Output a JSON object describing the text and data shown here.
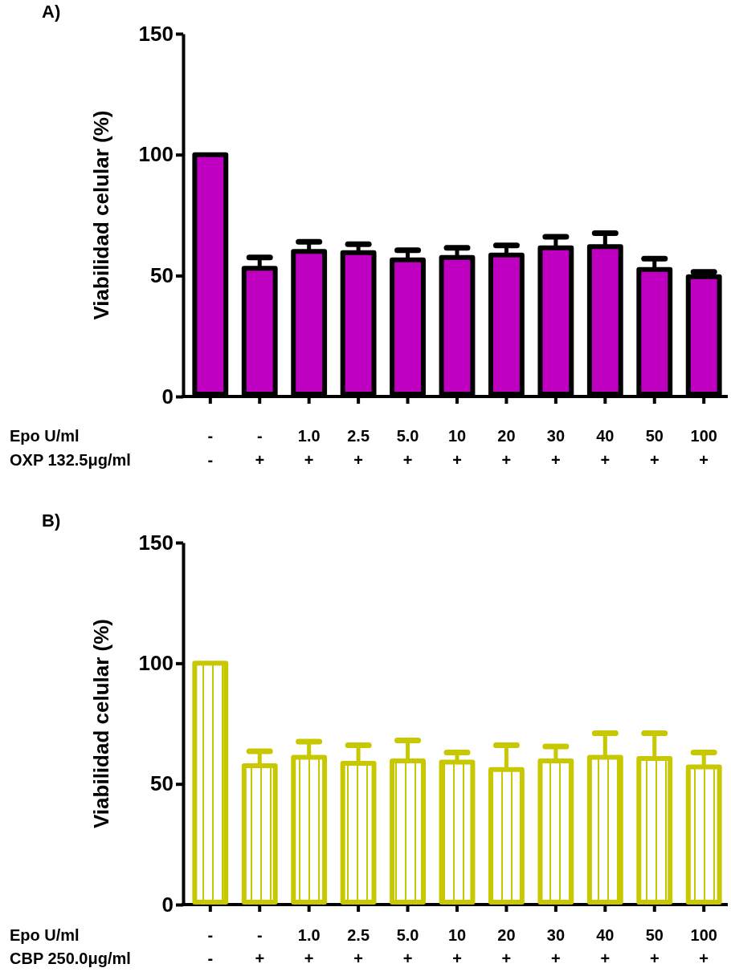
{
  "chart_data": [
    {
      "type": "bar",
      "title": "A)",
      "ylabel": "Viabilidad celular  (%)",
      "xlabel": "Epo U/ml\nOXP 132.5μg/ml",
      "categories": [
        "-\n-",
        "-\n+",
        "1.0\n+",
        "2.5\n+",
        "5.0\n+",
        "10\n+",
        "20\n+",
        "30\n+",
        "40\n+",
        "50\n+",
        "100\n+"
      ],
      "series": [
        {
          "color": "#c000c0",
          "values": [
            100,
            53,
            60,
            59.5,
            56.5,
            57.5,
            58.5,
            61.5,
            62,
            52.5,
            49.5
          ],
          "errors": [
            null,
            4.5,
            4,
            3.5,
            4,
            4,
            4,
            4.5,
            5.5,
            4.5,
            2
          ]
        }
      ],
      "ylim": [
        0,
        150
      ],
      "yticks": [
        0,
        50,
        100,
        150
      ]
    },
    {
      "type": "bar",
      "title": "B)",
      "ylabel": "Viabilidad celular  (%)",
      "xlabel": "Epo U/ml\nCBP 250.0μg/ml",
      "categories": [
        "-\n-",
        "-\n+",
        "1.0\n+",
        "2.5\n+",
        "5.0\n+",
        "10\n+",
        "20\n+",
        "30\n+",
        "40\n+",
        "50\n+",
        "100\n+"
      ],
      "series": [
        {
          "color": "#c8c800",
          "values": [
            100,
            57.5,
            61,
            58.5,
            59.5,
            59,
            56,
            59.5,
            61,
            60.5,
            57
          ],
          "errors": [
            null,
            6,
            6.5,
            7.5,
            8.5,
            4,
            10,
            6,
            10,
            10.5,
            6
          ]
        }
      ],
      "ylim": [
        0,
        150
      ],
      "yticks": [
        0,
        50,
        100,
        150
      ]
    }
  ]
}
